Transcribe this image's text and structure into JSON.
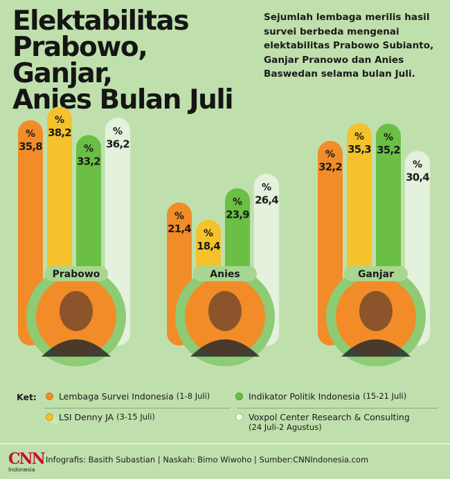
{
  "title": [
    "Elektabilitas",
    "Prabowo, Ganjar,",
    "Anies Bulan Juli"
  ],
  "subtitle": [
    "Sejumlah lembaga merilis hasil",
    "survei berbeda mengenai",
    "elektabilitas Prabowo Subianto,",
    "Ganjar Pranowo dan Anies",
    "Baswedan selama bulan Juli."
  ],
  "colors": {
    "lsi": "#f28c28",
    "denny": "#f5c22c",
    "indikator": "#6abf44",
    "voxpol": "#e4f2dd",
    "circle_ring": "#8dcb74",
    "circle_fill": "#f28c28",
    "label_pill": "#a8d690"
  },
  "chart_data": {
    "type": "bar",
    "title": "Elektabilitas Prabowo, Ganjar, Anies Bulan Juli",
    "unit": "%",
    "categories": [
      "Prabowo",
      "Anies",
      "Ganjar"
    ],
    "value_labels": {
      "Prabowo": [
        "35,8",
        "38,2",
        "33,2",
        "36,2"
      ],
      "Anies": [
        "21,4",
        "18,4",
        "23,9",
        "26,4"
      ],
      "Ganjar": [
        "32,2",
        "35,3",
        "35,2",
        "30,4"
      ]
    },
    "series": [
      {
        "name": "Lembaga Survei Indonesia",
        "color_key": "lsi",
        "values": [
          35.8,
          21.4,
          32.2
        ]
      },
      {
        "name": "LSI Denny JA",
        "color_key": "denny",
        "values": [
          38.2,
          18.4,
          35.3
        ]
      },
      {
        "name": "Indikator Politik Indonesia",
        "color_key": "indikator",
        "values": [
          33.2,
          23.9,
          35.2
        ]
      },
      {
        "name": "Voxpol Center Research & Consulting",
        "color_key": "voxpol",
        "values": [
          36.2,
          26.4,
          30.4
        ]
      }
    ]
  },
  "legend": {
    "ket": "Ket:",
    "items": [
      {
        "name": "Lembaga Survei Indonesia",
        "period": "(1-8 Juli)",
        "color_key": "lsi"
      },
      {
        "name": "LSI Denny JA",
        "period": "(3-15 Juli)",
        "color_key": "denny"
      },
      {
        "name": "Indikator Politik Indonesia",
        "period": "(15-21 Juli)",
        "color_key": "indikator"
      },
      {
        "name": "Voxpol Center Research & Consulting",
        "period": "(24 Juli-2 Agustus)",
        "color_key": "voxpol"
      }
    ]
  },
  "footer": {
    "logo": "CNN",
    "logo_sub": "Indonesia",
    "credits": "Infografis: Basith Subastian | Naskah: Bimo Wiwoho | Sumber:CNNIndonesia.com"
  }
}
